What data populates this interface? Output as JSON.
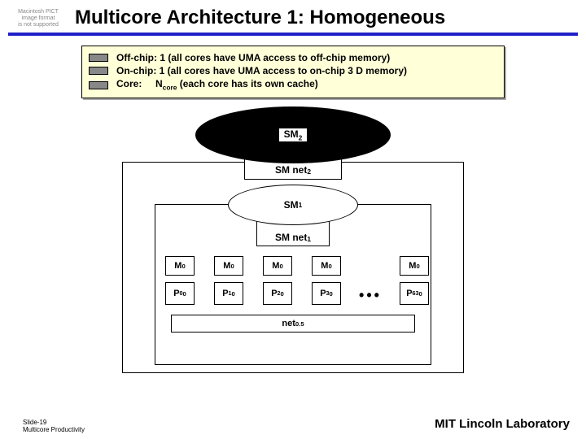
{
  "header": {
    "pict_placeholder_line1": "Macintosh PICT",
    "pict_placeholder_line2": "image format",
    "pict_placeholder_line3": "is not supported",
    "title": "Multicore Architecture 1: Homogeneous",
    "rule_color": "#2020c8"
  },
  "legend": {
    "bg": "#ffffd8",
    "rows": [
      {
        "swatch": "#888888",
        "text_html": "Off-chip: 1 (all cores have UMA access to off-chip memory)"
      },
      {
        "swatch": "#888888",
        "text_html": "On-chip: 1 (all cores have UMA access to on-chip 3 D memory)"
      },
      {
        "swatch": "#888888",
        "text_html": "Core:&nbsp;&nbsp;&nbsp;&nbsp;&nbsp;N<sub>core</sub> (each core has its own cache)"
      }
    ]
  },
  "diagram": {
    "sm2": "SM<sub>2</sub>",
    "smnet2": "SM net<sub>2</sub>",
    "sm1": "SM<sub>1</sub>",
    "smnet1": "SM net<sub>1</sub>",
    "cores": [
      {
        "m": "M<sub>0</sub>",
        "p": "P<sup>0</sup><sub>0</sub>"
      },
      {
        "m": "M<sub>0</sub>",
        "p": "P<sup>1</sup><sub>0</sub>"
      },
      {
        "m": "M<sub>0</sub>",
        "p": "P<sup>2</sup><sub>0</sub>"
      },
      {
        "m": "M<sub>0</sub>",
        "p": "P<sup>3</sup><sub>0</sub>"
      },
      {
        "m": "M<sub>0</sub>",
        "p": "P<sup>63</sup><sub>0</sub>"
      }
    ],
    "dots": "•••",
    "netbar": "net<sub>0.5</sub>"
  },
  "footer": {
    "left_line1": "Slide-19",
    "left_line2": "Multicore Productivity",
    "right": "MIT Lincoln Laboratory"
  }
}
